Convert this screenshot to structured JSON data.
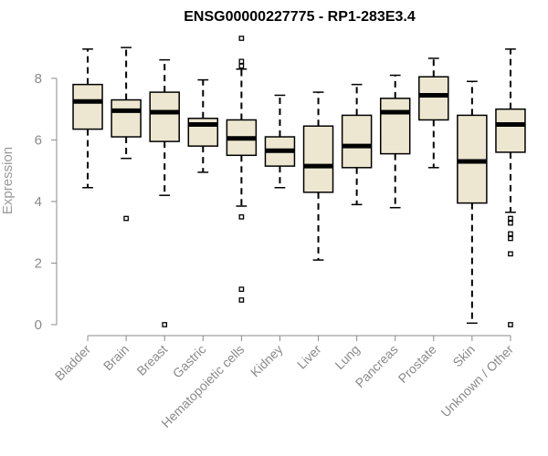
{
  "chart_data": {
    "type": "boxplot",
    "title": "ENSG00000227775 - RP1-283E3.4",
    "xlabel": "",
    "ylabel": "Expression",
    "ylim": [
      0,
      9.3
    ],
    "yticks": [
      0,
      2,
      4,
      6,
      8
    ],
    "grid": false,
    "legend": "none",
    "box_fill": "#ede7d1",
    "box_stroke": "#000000",
    "categories": [
      "Bladder",
      "Brain",
      "Breast",
      "Gastric",
      "Hematopoietic cells",
      "Kidney",
      "Liver",
      "Lung",
      "Pancreas",
      "Prostate",
      "Skin",
      "Unknown / Other"
    ],
    "boxes": [
      {
        "label": "Bladder",
        "whisker_low": 4.45,
        "q1": 6.35,
        "median": 7.25,
        "q3": 7.8,
        "whisker_high": 8.95,
        "outliers": []
      },
      {
        "label": "Brain",
        "whisker_low": 5.4,
        "q1": 6.1,
        "median": 6.95,
        "q3": 7.3,
        "whisker_high": 9.0,
        "outliers": [
          3.45
        ]
      },
      {
        "label": "Breast",
        "whisker_low": 4.2,
        "q1": 5.95,
        "median": 6.9,
        "q3": 7.55,
        "whisker_high": 8.6,
        "outliers": [
          0.0
        ]
      },
      {
        "label": "Gastric",
        "whisker_low": 4.95,
        "q1": 5.8,
        "median": 6.5,
        "q3": 6.7,
        "whisker_high": 7.95,
        "outliers": []
      },
      {
        "label": "Hematopoietic cells",
        "whisker_low": 3.85,
        "q1": 5.5,
        "median": 6.05,
        "q3": 6.65,
        "whisker_high": 8.3,
        "outliers": [
          9.3,
          8.55,
          8.4,
          3.5,
          1.15,
          0.8
        ]
      },
      {
        "label": "Kidney",
        "whisker_low": 4.45,
        "q1": 5.15,
        "median": 5.65,
        "q3": 6.1,
        "whisker_high": 7.45,
        "outliers": []
      },
      {
        "label": "Liver",
        "whisker_low": 2.1,
        "q1": 4.3,
        "median": 5.15,
        "q3": 6.45,
        "whisker_high": 7.55,
        "outliers": []
      },
      {
        "label": "Lung",
        "whisker_low": 3.9,
        "q1": 5.1,
        "median": 5.8,
        "q3": 6.8,
        "whisker_high": 7.8,
        "outliers": []
      },
      {
        "label": "Pancreas",
        "whisker_low": 3.8,
        "q1": 5.55,
        "median": 6.9,
        "q3": 7.35,
        "whisker_high": 8.1,
        "outliers": []
      },
      {
        "label": "Prostate",
        "whisker_low": 5.1,
        "q1": 6.65,
        "median": 7.45,
        "q3": 8.05,
        "whisker_high": 8.65,
        "outliers": []
      },
      {
        "label": "Skin",
        "whisker_low": 0.05,
        "q1": 3.95,
        "median": 5.3,
        "q3": 6.8,
        "whisker_high": 7.9,
        "outliers": []
      },
      {
        "label": "Unknown / Other",
        "whisker_low": 3.65,
        "q1": 5.6,
        "median": 6.5,
        "q3": 7.0,
        "whisker_high": 8.95,
        "outliers": [
          3.45,
          3.3,
          2.95,
          2.8,
          2.3,
          0.0
        ]
      }
    ]
  }
}
